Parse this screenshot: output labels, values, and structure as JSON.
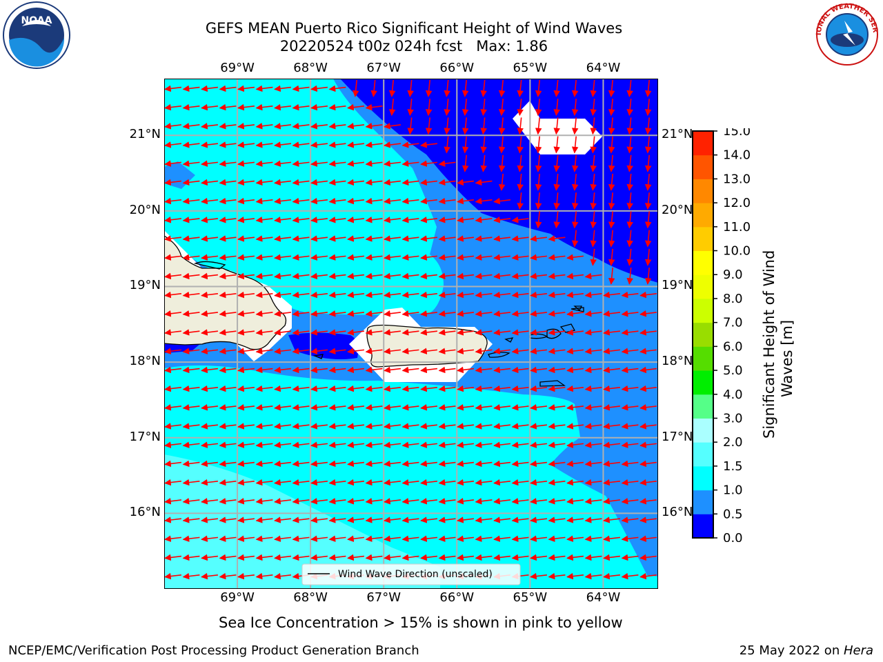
{
  "title": {
    "line1": "GEFS MEAN Puerto Rico Significant Height of Wind Waves",
    "line2": "20220524 t00z 024h fcst   Max: 1.86"
  },
  "map": {
    "lon_labels": [
      "69°W",
      "68°W",
      "67°W",
      "66°W",
      "65°W",
      "64°W"
    ],
    "lat_labels": [
      "21°N",
      "20°N",
      "19°N",
      "18°N",
      "17°N",
      "16°N"
    ],
    "lon_values": [
      -69,
      -68,
      -67,
      -66,
      -65,
      -64
    ],
    "lat_values": [
      21,
      20,
      19,
      18,
      17,
      16
    ],
    "lon_range": [
      -70,
      -63.25
    ],
    "lat_range": [
      15,
      21.75
    ],
    "arrow_color": "#ff0000",
    "land_color": "#efeedc",
    "legend_label": "Wind Wave Direction (unscaled)"
  },
  "colorbar": {
    "levels": [
      0.0,
      0.5,
      1.0,
      1.5,
      2.0,
      3.0,
      4.0,
      5.0,
      6.0,
      7.0,
      8.0,
      9.0,
      10.0,
      11.0,
      12.0,
      13.0,
      14.0,
      15.0
    ],
    "tick_labels": [
      "0.0",
      "0.5",
      "1.0",
      "1.5",
      "2.0",
      "3.0",
      "4.0",
      "5.0",
      "6.0",
      "7.0",
      "8.0",
      "9.0",
      "10.0",
      "11.0",
      "12.0",
      "13.0",
      "14.0",
      "15.0"
    ],
    "colors": [
      "#0000ff",
      "#1e90ff",
      "#00ffff",
      "#55ffff",
      "#aaffff",
      "#55ff88",
      "#00ee00",
      "#55dd00",
      "#99dd00",
      "#ccff00",
      "#eeff00",
      "#ffff00",
      "#ffcc00",
      "#ffaa00",
      "#ff8800",
      "#ff5500",
      "#ff2200"
    ],
    "label": "Significant Height of Wind Waves [m]"
  },
  "subtitle": "Sea Ice Concentration > 15% is shown in pink to yellow",
  "footer": {
    "left": "NCEP/EMC/Verification Post Processing Product Generation Branch",
    "date": "25 May 2022 on ",
    "machine": "Hera"
  },
  "logos": {
    "noaa": "NOAA",
    "nws": "NATIONAL WEATHER SERVICE"
  }
}
